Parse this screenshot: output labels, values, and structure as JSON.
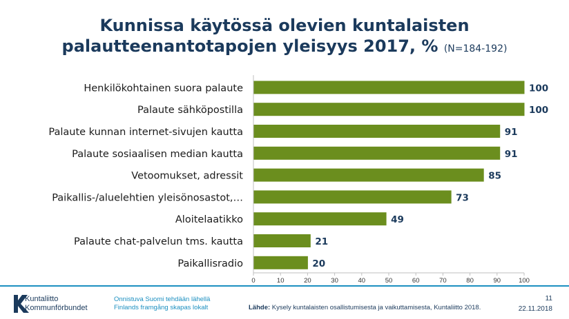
{
  "slide": {
    "title_line1": "Kunnissa käytössä olevien kuntalaisten",
    "title_line2": "palautteenantotapojen yleisyys 2017, %",
    "sample_note": "(N=184-192)",
    "logo": {
      "line1": "Kuntaliitto",
      "line2": "Kommunförbundet"
    },
    "slogan_line1": "Onnistuva Suomi tehdään lähellä",
    "slogan_line2": "Finlands framgång skapas lokalt",
    "source_label": "Lähde:",
    "source_text": "Kysely kuntalaisten osallistumisesta ja vaikuttamisesta, Kuntaliitto 2018.",
    "page_number": "11",
    "date": "22.11.2018"
  },
  "colors": {
    "bar": "#6b8e1e",
    "title": "#1b3a5c",
    "accent": "#1b8fc0"
  },
  "chart_data": {
    "type": "bar",
    "orientation": "horizontal",
    "categories": [
      "Henkilökohtainen suora palaute",
      "Palaute sähköpostilla",
      "Palaute kunnan internet-sivujen kautta",
      "Palaute sosiaalisen median kautta",
      "Vetoomukset, adressit",
      "Paikallis-/aluelehtien yleisönosastot,…",
      "Aloitelaatikko",
      "Palaute chat-palvelun tms. kautta",
      "Paikallisradio"
    ],
    "values": [
      100,
      100,
      91,
      91,
      85,
      73,
      49,
      21,
      20
    ],
    "xlim": [
      0,
      100
    ],
    "xticks": [
      0,
      10,
      20,
      30,
      40,
      50,
      60,
      70,
      80,
      90,
      100
    ],
    "grid": false,
    "legend": "none"
  }
}
